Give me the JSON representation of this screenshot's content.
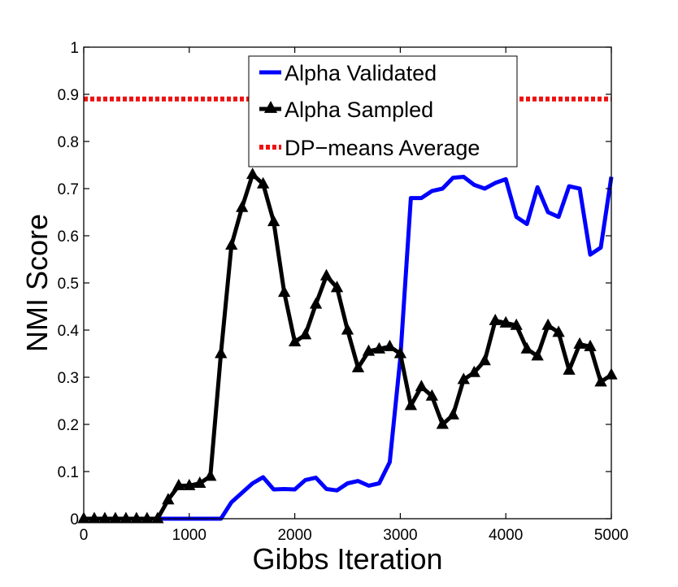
{
  "chart_data": {
    "type": "line",
    "xlabel": "Gibbs Iteration",
    "ylabel": "NMI Score",
    "xlim": [
      0,
      5000
    ],
    "ylim": [
      0,
      1
    ],
    "x_ticks": [
      "0",
      "1000",
      "2000",
      "3000",
      "4000",
      "5000"
    ],
    "y_ticks": [
      "0",
      "0.1",
      "0.2",
      "0.3",
      "0.4",
      "0.5",
      "0.6",
      "0.7",
      "0.8",
      "0.9",
      "1"
    ],
    "legend_position": "top-center",
    "grid": false,
    "series": [
      {
        "name": "Alpha Validated",
        "color": "#0000ff",
        "style": "solid",
        "marker": "none",
        "x": [
          0,
          100,
          200,
          300,
          400,
          500,
          600,
          700,
          800,
          900,
          1000,
          1100,
          1200,
          1300,
          1400,
          1500,
          1600,
          1700,
          1800,
          1900,
          2000,
          2100,
          2200,
          2300,
          2400,
          2500,
          2600,
          2700,
          2800,
          2900,
          3000,
          3100,
          3200,
          3300,
          3400,
          3500,
          3600,
          3700,
          3800,
          3900,
          4000,
          4100,
          4200,
          4300,
          4400,
          4500,
          4600,
          4700,
          4800,
          4900,
          5000
        ],
        "y": [
          0,
          0,
          0,
          0,
          0,
          0,
          0,
          0,
          0,
          0,
          0,
          0,
          0,
          0,
          0.035,
          0.055,
          0.075,
          0.088,
          0.062,
          0.063,
          0.062,
          0.082,
          0.087,
          0.063,
          0.06,
          0.075,
          0.08,
          0.07,
          0.075,
          0.12,
          0.34,
          0.68,
          0.68,
          0.695,
          0.7,
          0.723,
          0.725,
          0.708,
          0.7,
          0.712,
          0.72,
          0.64,
          0.625,
          0.703,
          0.65,
          0.64,
          0.705,
          0.7,
          0.56,
          0.575,
          0.725
        ]
      },
      {
        "name": "Alpha Sampled",
        "color": "#000000",
        "style": "solid",
        "marker": "triangle",
        "x": [
          0,
          100,
          200,
          300,
          400,
          500,
          600,
          700,
          800,
          900,
          1000,
          1100,
          1200,
          1300,
          1400,
          1500,
          1600,
          1700,
          1800,
          1900,
          2000,
          2100,
          2200,
          2300,
          2400,
          2500,
          2600,
          2700,
          2800,
          2900,
          3000,
          3100,
          3200,
          3300,
          3400,
          3500,
          3600,
          3700,
          3800,
          3900,
          4000,
          4100,
          4200,
          4300,
          4400,
          4500,
          4600,
          4700,
          4800,
          4900,
          5000
        ],
        "y": [
          0,
          0,
          0,
          0,
          0,
          0,
          0,
          0,
          0.04,
          0.07,
          0.07,
          0.075,
          0.09,
          0.35,
          0.58,
          0.66,
          0.73,
          0.71,
          0.63,
          0.48,
          0.375,
          0.39,
          0.455,
          0.515,
          0.49,
          0.4,
          0.32,
          0.355,
          0.36,
          0.365,
          0.35,
          0.24,
          0.28,
          0.26,
          0.2,
          0.22,
          0.295,
          0.31,
          0.335,
          0.42,
          0.415,
          0.41,
          0.36,
          0.345,
          0.41,
          0.395,
          0.315,
          0.37,
          0.365,
          0.29,
          0.305
        ]
      },
      {
        "name": "DP−means Average",
        "color": "#ee1111",
        "style": "dotted",
        "marker": "none",
        "x": [
          0,
          5000
        ],
        "y": [
          0.89,
          0.89
        ]
      }
    ]
  }
}
